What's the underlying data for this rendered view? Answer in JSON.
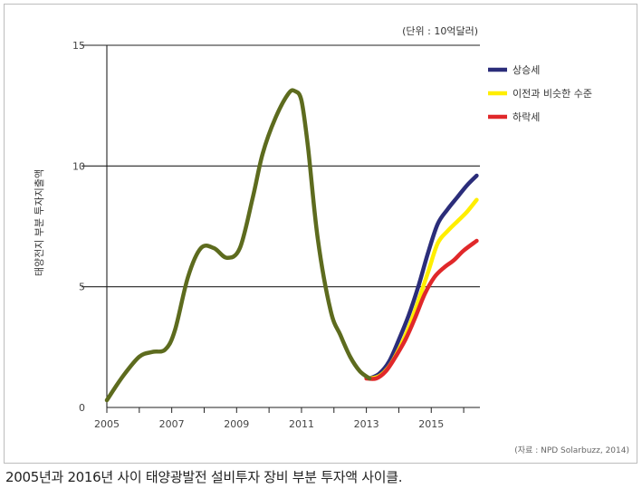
{
  "figure": {
    "caption": "2005년과 2016년 사이 태양광발전 설비투자 장비 부분 투자액 사이클.",
    "source": "(자료 : NPD Solarbuzz, 2014)"
  },
  "chart_data": {
    "type": "line",
    "title": "",
    "unit_label": "(단위 : 10억달러)",
    "ylabel": "태양전지 부분 투자지출액",
    "xlabel": "",
    "xlim": [
      2005,
      2016.5
    ],
    "ylim": [
      0,
      15
    ],
    "x_ticks": [
      "2005",
      "2007",
      "2009",
      "2011",
      "2013",
      "2015"
    ],
    "y_ticks": [
      "0",
      "5",
      "10",
      "15"
    ],
    "grid": "horizontal at 5, 10, 15",
    "legend_position": "top-right",
    "history": {
      "color": "#5d6b1e",
      "x": [
        2005,
        2005.5,
        2006,
        2006.4,
        2006.8,
        2007.1,
        2007.5,
        2007.9,
        2008.3,
        2008.7,
        2009.1,
        2009.5,
        2009.8,
        2010.2,
        2010.6,
        2010.8,
        2011.0,
        2011.2,
        2011.5,
        2011.9,
        2012.2,
        2012.5,
        2012.8,
        2013.1
      ],
      "y": [
        0.3,
        1.3,
        2.1,
        2.3,
        2.4,
        3.2,
        5.4,
        6.6,
        6.6,
        6.2,
        6.6,
        8.7,
        10.5,
        12.0,
        13.0,
        13.1,
        12.7,
        10.8,
        7.0,
        4.0,
        3.0,
        2.1,
        1.5,
        1.2
      ]
    },
    "series": [
      {
        "name": "상승세",
        "color": "#2b2d7a",
        "x": [
          2013.1,
          2013.4,
          2013.7,
          2014.0,
          2014.3,
          2014.6,
          2014.9,
          2015.2,
          2015.5,
          2015.8,
          2016.1,
          2016.4
        ],
        "y": [
          1.2,
          1.4,
          1.9,
          2.8,
          3.8,
          5.0,
          6.4,
          7.6,
          8.2,
          8.7,
          9.2,
          9.6
        ]
      },
      {
        "name": "이전과 비슷한 수준",
        "color": "#ffee00",
        "x": [
          2013.1,
          2013.4,
          2013.7,
          2014.0,
          2014.3,
          2014.6,
          2014.9,
          2015.2,
          2015.5,
          2015.8,
          2016.1,
          2016.4
        ],
        "y": [
          1.2,
          1.3,
          1.7,
          2.4,
          3.3,
          4.4,
          5.6,
          6.8,
          7.3,
          7.7,
          8.1,
          8.6
        ]
      },
      {
        "name": "하락세",
        "color": "#e0282a",
        "x": [
          2013.0,
          2013.3,
          2013.6,
          2013.9,
          2014.2,
          2014.5,
          2014.8,
          2015.1,
          2015.4,
          2015.7,
          2016.0,
          2016.4
        ],
        "y": [
          1.2,
          1.2,
          1.5,
          2.1,
          2.8,
          3.7,
          4.7,
          5.4,
          5.8,
          6.1,
          6.5,
          6.9
        ]
      }
    ]
  }
}
